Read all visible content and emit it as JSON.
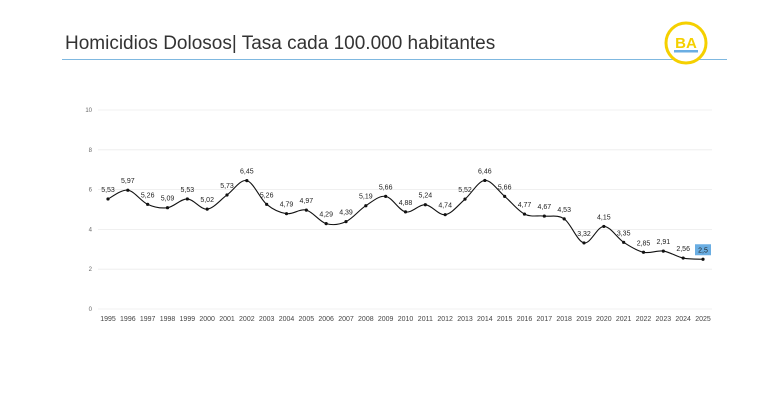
{
  "slide": {
    "title": "Homicidios Dolosos| Tasa cada 100.000 habitantes",
    "logo_text": "BA",
    "accent_color": "#6aaee3",
    "logo_color": "#f5d000"
  },
  "chart_data": {
    "type": "line",
    "title": "",
    "xlabel": "",
    "ylabel": "",
    "ylim": [
      0,
      10
    ],
    "yticks": [
      0,
      2,
      4,
      6,
      8,
      10
    ],
    "grid": true,
    "categories": [
      "1995",
      "1996",
      "1997",
      "1998",
      "1999",
      "2000",
      "2001",
      "2002",
      "2003",
      "2004",
      "2005",
      "2006",
      "2007",
      "2008",
      "2009",
      "2010",
      "2011",
      "2012",
      "2013",
      "2014",
      "2015",
      "2016",
      "2017",
      "2018",
      "2019",
      "2020",
      "2021",
      "2022",
      "2023",
      "2024",
      "2025"
    ],
    "values": [
      5.53,
      5.97,
      5.26,
      5.09,
      5.53,
      5.02,
      5.73,
      6.45,
      5.26,
      4.79,
      4.97,
      4.29,
      4.39,
      5.19,
      5.66,
      4.88,
      5.24,
      4.74,
      5.52,
      6.46,
      5.66,
      4.77,
      4.67,
      4.53,
      3.32,
      4.15,
      3.35,
      2.85,
      2.91,
      2.56,
      2.5
    ],
    "labels": [
      "5,53",
      "5,97",
      "5,26",
      "5,09",
      "5,53",
      "5,02",
      "5,73",
      "6,45",
      "5,26",
      "4,79",
      "4,97",
      "4,29",
      "4,39",
      "5,19",
      "5,66",
      "4,88",
      "5,24",
      "4,74",
      "5,52",
      "6,46",
      "5,66",
      "4,77",
      "4,67",
      "4,53",
      "3,32",
      "4,15",
      "3,35",
      "2,85",
      "2,91",
      "2,56",
      "2,5"
    ],
    "highlight_last": true,
    "line_color": "#111111",
    "grid_color": "#ececec",
    "highlight_color": "#6aaee3"
  }
}
